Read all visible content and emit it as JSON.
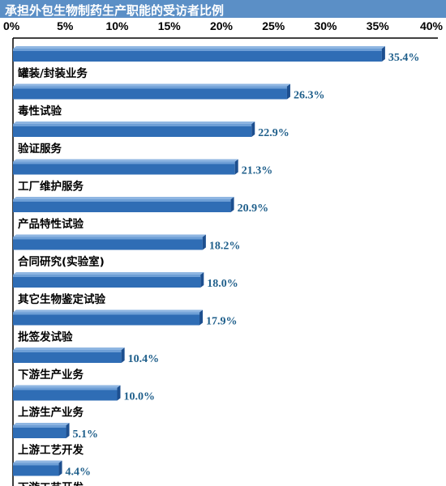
{
  "chart_data": {
    "type": "bar",
    "orientation": "horizontal",
    "title": "承担外包生物制药生产职能的受访者比例",
    "x_ticks": [
      "0%",
      "5%",
      "10%",
      "15%",
      "20%",
      "25%",
      "30%",
      "35%",
      "40%"
    ],
    "xlim": [
      0,
      40
    ],
    "categories": [
      "罐装/封装业务",
      "毒性试验",
      "验证服务",
      "工厂维护服务",
      "产品特性试验",
      "合同研究(实验室)",
      "其它生物鉴定试验",
      "批签发试验",
      "下游生产业务",
      "上游生产业务",
      "上游工艺开发",
      "下游工艺开发"
    ],
    "values": [
      35.4,
      26.3,
      22.9,
      21.3,
      20.9,
      18.2,
      18.0,
      17.9,
      10.4,
      10.0,
      5.1,
      4.4
    ],
    "value_labels": [
      "35.4%",
      "26.3%",
      "22.9%",
      "21.3%",
      "20.9%",
      "18.2%",
      "18.0%",
      "17.9%",
      "10.4%",
      "10.0%",
      "5.1%",
      "4.4%"
    ],
    "bar_color": "#2f6db5",
    "value_label_color": "#1f5f8b",
    "title_bg_color": "#5b8fc6",
    "grid": false
  }
}
